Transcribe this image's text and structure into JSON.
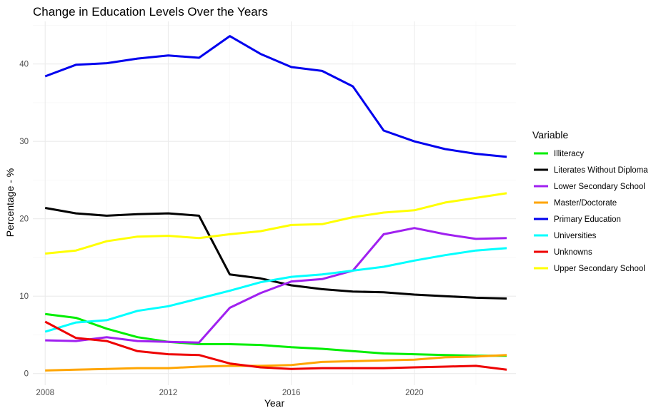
{
  "chart_data": {
    "type": "line",
    "title": "Change in Education Levels Over the Years",
    "xlabel": "Year",
    "ylabel": "Percentage - %",
    "xlim": [
      2007.6,
      2023.3
    ],
    "ylim": [
      -1.5,
      45.5
    ],
    "x_ticks": [
      2008,
      2012,
      2016,
      2020
    ],
    "y_ticks": [
      0,
      10,
      20,
      30,
      40
    ],
    "grid": true,
    "legend": {
      "title": "Variable",
      "position": "right"
    },
    "x": [
      2008,
      2009,
      2010,
      2011,
      2012,
      2013,
      2014,
      2015,
      2016,
      2017,
      2018,
      2019,
      2020,
      2021,
      2022,
      2023
    ],
    "series": [
      {
        "name": "Illiteracy",
        "color": "#00ee00",
        "values": [
          7.7,
          7.2,
          5.8,
          4.7,
          4.1,
          3.8,
          3.8,
          3.7,
          3.4,
          3.2,
          2.9,
          2.6,
          2.5,
          2.4,
          2.3,
          2.3
        ]
      },
      {
        "name": "Literates Without Diploma",
        "color": "#000000",
        "values": [
          21.4,
          20.7,
          20.4,
          20.6,
          20.7,
          20.4,
          12.8,
          12.3,
          11.4,
          10.9,
          10.6,
          10.5,
          10.2,
          10.0,
          9.8,
          9.7
        ]
      },
      {
        "name": "Lower Secondary School",
        "color": "#a020f0",
        "values": [
          4.3,
          4.2,
          4.7,
          4.2,
          4.1,
          4.0,
          8.5,
          10.4,
          11.9,
          12.2,
          13.3,
          18.0,
          18.8,
          18.0,
          17.4,
          17.5
        ]
      },
      {
        "name": "Master/Doctorate",
        "color": "#ffa500",
        "values": [
          0.4,
          0.5,
          0.6,
          0.7,
          0.7,
          0.9,
          1.0,
          1.0,
          1.1,
          1.5,
          1.6,
          1.7,
          1.8,
          2.1,
          2.2,
          2.4
        ]
      },
      {
        "name": "Primary Education",
        "color": "#0000ee",
        "values": [
          38.4,
          39.9,
          40.1,
          40.7,
          41.1,
          40.8,
          43.6,
          41.3,
          39.6,
          39.1,
          37.1,
          31.4,
          30.0,
          29.0,
          28.4,
          28.0
        ]
      },
      {
        "name": "Universities",
        "color": "#00ffff",
        "values": [
          5.4,
          6.6,
          6.9,
          8.1,
          8.7,
          9.7,
          10.7,
          11.8,
          12.5,
          12.8,
          13.3,
          13.8,
          14.6,
          15.3,
          15.9,
          16.2
        ]
      },
      {
        "name": "Unknowns",
        "color": "#ee0000",
        "values": [
          6.7,
          4.6,
          4.2,
          2.9,
          2.5,
          2.4,
          1.3,
          0.8,
          0.6,
          0.7,
          0.7,
          0.7,
          0.8,
          0.9,
          1.0,
          0.5
        ]
      },
      {
        "name": "Upper Secondary School",
        "color": "#ffff00",
        "values": [
          15.5,
          15.9,
          17.1,
          17.7,
          17.8,
          17.5,
          18.0,
          18.4,
          19.2,
          19.3,
          20.2,
          20.8,
          21.1,
          22.1,
          22.7,
          23.3
        ]
      }
    ]
  }
}
